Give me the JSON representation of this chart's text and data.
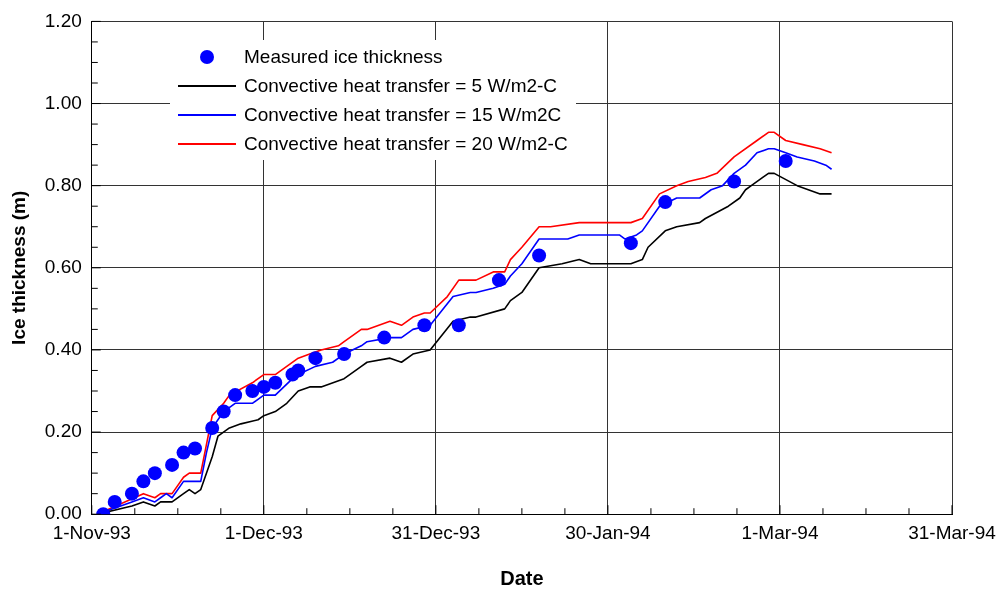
{
  "chart_data": {
    "type": "line",
    "xlabel": "Date",
    "ylabel": "Ice thickness (m)",
    "xlim": [
      "1993-11-01",
      "1994-03-31"
    ],
    "xticks": [
      {
        "value": "1993-11-01",
        "label": "1-Nov-93"
      },
      {
        "value": "1993-11-08T12:00",
        "label": null
      },
      {
        "value": "1993-11-16",
        "label": null
      },
      {
        "value": "1993-11-23T12:00",
        "label": null
      },
      {
        "value": "1993-12-01",
        "label": "1-Dec-93"
      },
      {
        "value": "1993-12-08T12:00",
        "label": null
      },
      {
        "value": "1993-12-16",
        "label": null
      },
      {
        "value": "1993-12-23T12:00",
        "label": null
      },
      {
        "value": "1993-12-31",
        "label": "31-Dec-93"
      },
      {
        "value": "1994-01-07T12:00",
        "label": null
      },
      {
        "value": "1994-01-15",
        "label": null
      },
      {
        "value": "1994-01-22T12:00",
        "label": null
      },
      {
        "value": "1994-01-30",
        "label": "30-Jan-94"
      },
      {
        "value": "1994-02-06T12:00",
        "label": null
      },
      {
        "value": "1994-02-14",
        "label": null
      },
      {
        "value": "1994-02-21T12:00",
        "label": null
      },
      {
        "value": "1994-03-01",
        "label": "1-Mar-94"
      },
      {
        "value": "1994-03-08T12:00",
        "label": null
      },
      {
        "value": "1994-03-16",
        "label": null
      },
      {
        "value": "1994-03-23T12:00",
        "label": null
      },
      {
        "value": "1994-03-31",
        "label": "31-Mar-94"
      }
    ],
    "ylim": [
      0,
      1.2
    ],
    "yticks": [
      {
        "value": 0,
        "label": "0.00"
      },
      {
        "value": 0.05,
        "label": null
      },
      {
        "value": 0.1,
        "label": null
      },
      {
        "value": 0.15,
        "label": null
      },
      {
        "value": 0.2,
        "label": "0.20"
      },
      {
        "value": 0.25,
        "label": null
      },
      {
        "value": 0.3,
        "label": null
      },
      {
        "value": 0.35,
        "label": null
      },
      {
        "value": 0.4,
        "label": "0.40"
      },
      {
        "value": 0.45,
        "label": null
      },
      {
        "value": 0.5,
        "label": null
      },
      {
        "value": 0.55,
        "label": null
      },
      {
        "value": 0.6,
        "label": "0.60"
      },
      {
        "value": 0.65,
        "label": null
      },
      {
        "value": 0.7,
        "label": null
      },
      {
        "value": 0.75,
        "label": null
      },
      {
        "value": 0.8,
        "label": "0.80"
      },
      {
        "value": 0.85,
        "label": null
      },
      {
        "value": 0.9,
        "label": null
      },
      {
        "value": 0.95,
        "label": null
      },
      {
        "value": 1.0,
        "label": "1.00"
      },
      {
        "value": 1.05,
        "label": null
      },
      {
        "value": 1.1,
        "label": null
      },
      {
        "value": 1.15,
        "label": null
      },
      {
        "value": 1.2,
        "label": "1.20"
      }
    ],
    "grid": true,
    "legend": "top left",
    "series": [
      {
        "name": "Measured ice thickness",
        "type": "scatter",
        "marker": "circle",
        "color": "#0000ff",
        "x": [
          "1993-11-03",
          "1993-11-05",
          "1993-11-08",
          "1993-11-10",
          "1993-11-12",
          "1993-11-15",
          "1993-11-17",
          "1993-11-19",
          "1993-11-22",
          "1993-11-24",
          "1993-11-26",
          "1993-11-29",
          "1993-12-01",
          "1993-12-03",
          "1993-12-06",
          "1993-12-07",
          "1993-12-10",
          "1993-12-15",
          "1993-12-22",
          "1993-12-29",
          "1994-01-04",
          "1994-01-11",
          "1994-01-18",
          "1994-02-03",
          "1994-02-09",
          "1994-02-21",
          "1994-03-02"
        ],
        "values": [
          0,
          0.03,
          0.05,
          0.08,
          0.1,
          0.12,
          0.15,
          0.16,
          0.21,
          0.25,
          0.29,
          0.3,
          0.31,
          0.32,
          0.34,
          0.35,
          0.38,
          0.39,
          0.43,
          0.46,
          0.46,
          0.57,
          0.63,
          0.66,
          0.76,
          0.81,
          0.86
        ]
      },
      {
        "name": "Convective heat transfer = 5 W/m2-C",
        "type": "line",
        "marker": "none",
        "line_style": "solid",
        "color": "#000000",
        "x": [
          "1993-11-02",
          "1993-11-08",
          "1993-11-10",
          "1993-11-12",
          "1993-11-13",
          "1993-11-15",
          "1993-11-17",
          "1993-11-18",
          "1993-11-19",
          "1993-11-20",
          "1993-11-22",
          "1993-11-23",
          "1993-11-25",
          "1993-11-27",
          "1993-11-30",
          "1993-12-01",
          "1993-12-03",
          "1993-12-05",
          "1993-12-07",
          "1993-12-09",
          "1993-12-11",
          "1993-12-15",
          "1993-12-18",
          "1993-12-19",
          "1993-12-23",
          "1993-12-25",
          "1993-12-27",
          "1993-12-30",
          "1994-01-03",
          "1994-01-06",
          "1994-01-07",
          "1994-01-12",
          "1994-01-13",
          "1994-01-15",
          "1994-01-18",
          "1994-01-22",
          "1994-01-25",
          "1994-01-27",
          "1994-02-03",
          "1994-02-05",
          "1994-02-06",
          "1994-02-09",
          "1994-02-11",
          "1994-02-15",
          "1994-02-16",
          "1994-02-20",
          "1994-02-22",
          "1994-02-23",
          "1994-02-24",
          "1994-02-26",
          "1994-02-27",
          "1994-02-28",
          "1994-03-04",
          "1994-03-08",
          "1994-03-10"
        ],
        "values": [
          0,
          0.02,
          0.03,
          0.02,
          0.03,
          0.03,
          0.05,
          0.06,
          0.05,
          0.06,
          0.14,
          0.19,
          0.21,
          0.22,
          0.23,
          0.24,
          0.25,
          0.27,
          0.3,
          0.31,
          0.31,
          0.33,
          0.36,
          0.37,
          0.38,
          0.37,
          0.39,
          0.4,
          0.47,
          0.48,
          0.48,
          0.5,
          0.52,
          0.54,
          0.6,
          0.61,
          0.62,
          0.61,
          0.61,
          0.62,
          0.65,
          0.69,
          0.7,
          0.71,
          0.72,
          0.75,
          0.77,
          0.79,
          0.8,
          0.82,
          0.83,
          0.83,
          0.8,
          0.78,
          0.78
        ]
      },
      {
        "name": "Convective heat transfer = 15 W/m2C",
        "type": "line",
        "marker": "none",
        "line_style": "solid",
        "color": "#0000ff",
        "x": [
          "1993-11-02",
          "1993-11-08",
          "1993-11-10",
          "1993-11-12",
          "1993-11-13",
          "1993-11-14",
          "1993-11-15",
          "1993-11-17",
          "1993-11-18",
          "1993-11-20",
          "1993-11-21",
          "1993-11-22",
          "1993-11-24",
          "1993-11-26",
          "1993-11-29",
          "1993-12-01",
          "1993-12-03",
          "1993-12-06",
          "1993-12-07",
          "1993-12-10",
          "1993-12-13",
          "1993-12-15",
          "1993-12-18",
          "1993-12-19",
          "1993-12-23",
          "1993-12-25",
          "1993-12-27",
          "1993-12-30",
          "1994-01-03",
          "1994-01-06",
          "1994-01-07",
          "1994-01-10",
          "1994-01-12",
          "1994-01-13",
          "1994-01-15",
          "1994-01-18",
          "1994-01-20",
          "1994-01-23",
          "1994-01-25",
          "1994-01-27",
          "1994-02-01",
          "1994-02-02",
          "1994-02-04",
          "1994-02-05",
          "1994-02-08",
          "1994-02-11",
          "1994-02-12",
          "1994-02-15",
          "1994-02-17",
          "1994-02-19",
          "1994-02-21",
          "1994-02-23",
          "1994-02-25",
          "1994-02-27",
          "1994-02-28",
          "1994-03-02",
          "1994-03-04",
          "1994-03-07",
          "1994-03-09",
          "1994-03-10"
        ],
        "values": [
          0,
          0.03,
          0.04,
          0.03,
          0.04,
          0.05,
          0.04,
          0.08,
          0.08,
          0.08,
          0.15,
          0.21,
          0.25,
          0.27,
          0.27,
          0.29,
          0.29,
          0.33,
          0.34,
          0.36,
          0.37,
          0.39,
          0.41,
          0.42,
          0.43,
          0.43,
          0.45,
          0.46,
          0.53,
          0.54,
          0.54,
          0.55,
          0.56,
          0.58,
          0.61,
          0.67,
          0.67,
          0.67,
          0.68,
          0.68,
          0.68,
          0.67,
          0.68,
          0.69,
          0.75,
          0.77,
          0.77,
          0.77,
          0.79,
          0.8,
          0.83,
          0.85,
          0.88,
          0.89,
          0.89,
          0.88,
          0.87,
          0.86,
          0.85,
          0.84
        ]
      },
      {
        "name": "Convective heat transfer = 20 W/m2-C",
        "type": "line",
        "marker": "none",
        "line_style": "solid",
        "color": "#ff0000",
        "x": [
          "1993-11-02",
          "1993-11-10",
          "1993-11-12",
          "1993-11-13",
          "1993-11-14",
          "1993-11-15",
          "1993-11-17",
          "1993-11-18",
          "1993-11-20",
          "1993-11-21",
          "1993-11-22",
          "1993-11-24",
          "1993-11-25",
          "1993-11-29",
          "1993-12-01",
          "1993-12-03",
          "1993-12-07",
          "1993-12-09",
          "1993-12-11",
          "1993-12-14",
          "1993-12-15",
          "1993-12-18",
          "1993-12-19",
          "1993-12-23",
          "1993-12-25",
          "1993-12-27",
          "1993-12-29",
          "1993-12-30",
          "1994-01-02",
          "1994-01-04",
          "1994-01-07",
          "1994-01-10",
          "1994-01-12",
          "1994-01-13",
          "1994-01-15",
          "1994-01-18",
          "1994-01-20",
          "1994-01-25",
          "1994-01-28",
          "1994-01-29",
          "1994-02-03",
          "1994-02-05",
          "1994-02-08",
          "1994-02-11",
          "1994-02-13",
          "1994-02-16",
          "1994-02-18",
          "1994-02-21",
          "1994-02-25",
          "1994-02-27",
          "1994-02-28",
          "1994-03-02",
          "1994-03-05",
          "1994-03-08",
          "1994-03-10"
        ],
        "values": [
          0,
          0.05,
          0.04,
          0.05,
          0.05,
          0.05,
          0.09,
          0.1,
          0.1,
          0.17,
          0.24,
          0.27,
          0.29,
          0.32,
          0.34,
          0.34,
          0.38,
          0.39,
          0.4,
          0.41,
          0.42,
          0.45,
          0.45,
          0.47,
          0.46,
          0.48,
          0.49,
          0.49,
          0.53,
          0.57,
          0.57,
          0.59,
          0.59,
          0.62,
          0.65,
          0.7,
          0.7,
          0.71,
          0.71,
          0.71,
          0.71,
          0.72,
          0.78,
          0.8,
          0.81,
          0.82,
          0.83,
          0.87,
          0.91,
          0.93,
          0.93,
          0.91,
          0.9,
          0.89,
          0.88
        ]
      }
    ]
  }
}
